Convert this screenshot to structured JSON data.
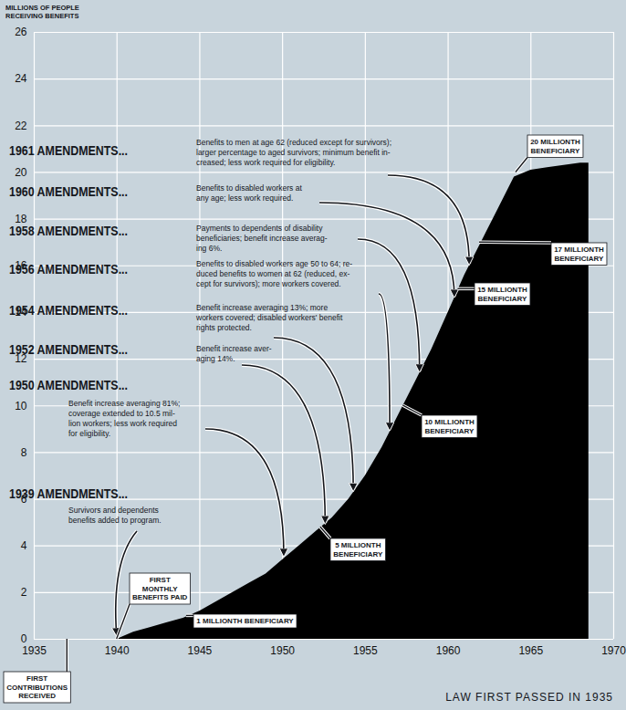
{
  "chart_data": {
    "type": "area",
    "y_label": "MILLIONS OF PEOPLE RECEIVING BENEFITS",
    "caption": "LAW FIRST PASSED IN 1935",
    "x": [
      1940,
      1941,
      1942,
      1943,
      1944,
      1945,
      1946,
      1947,
      1948,
      1949,
      1950,
      1951,
      1952,
      1953,
      1954,
      1955,
      1956,
      1957,
      1958,
      1959,
      1960,
      1961,
      1962,
      1963,
      1964,
      1965,
      1966,
      1967,
      1968,
      1968.5
    ],
    "values": [
      0,
      0.3,
      0.5,
      0.7,
      0.9,
      1.2,
      1.6,
      2.0,
      2.4,
      2.8,
      3.4,
      4.0,
      4.6,
      5.2,
      6.0,
      7.0,
      8.2,
      9.6,
      11.0,
      12.4,
      14.0,
      15.6,
      17.0,
      18.4,
      19.8,
      20.1,
      20.2,
      20.3,
      20.4,
      20.4
    ],
    "color": "#000000",
    "xlim": [
      1935,
      1970
    ],
    "ylim": [
      0,
      26
    ],
    "xticks": [
      1935,
      1940,
      1945,
      1950,
      1955,
      1960,
      1965,
      1970
    ],
    "yticks": [
      0,
      2,
      4,
      6,
      8,
      10,
      12,
      14,
      16,
      18,
      20,
      22,
      24,
      26
    ],
    "grid": true,
    "amendments": [
      {
        "label": "1961 AMENDMENTS...",
        "text": [
          "Benefits to men at age 62 (reduced except for survivors);",
          "larger percentage to aged survivors; minimum benefit in-",
          "creased; less work required for eligibility."
        ],
        "x": 1961.3,
        "y": 16.0
      },
      {
        "label": "1960 AMENDMENTS...",
        "text": [
          "Benefits to disabled workers at",
          "any age; less work required."
        ],
        "x": 1960.4,
        "y": 14.6
      },
      {
        "label": "1958 AMENDMENTS...",
        "text": [
          "Payments to dependents of disability",
          "beneficiaries; benefit increase averag-",
          "ing 6%."
        ],
        "x": 1958.3,
        "y": 11.4
      },
      {
        "label": "1956 AMENDMENTS...",
        "text": [
          "Benefits to disabled workers age 50 to 64; re-",
          "duced benefits to women at 62 (reduced, ex-",
          "cept for survivors); more workers covered."
        ],
        "x": 1956.5,
        "y": 8.9
      },
      {
        "label": "1954 AMENDMENTS...",
        "text": [
          "Benefit increase averaging 13%; more",
          "workers covered; disabled workers' benefit",
          "rights protected."
        ],
        "x": 1954.3,
        "y": 6.3
      },
      {
        "label": "1952 AMENDMENTS...",
        "text": [
          "Benefit increase aver-",
          "aging 14%."
        ],
        "x": 1952.6,
        "y": 4.9
      },
      {
        "label": "1950 AMENDMENTS...",
        "text": [
          "Benefit increase averaging 81%;",
          "coverage extended to 10.5 mil-",
          "lion workers; less work required",
          "for eligibility."
        ],
        "x": 1950.1,
        "y": 3.5
      },
      {
        "label": "1939 AMENDMENTS...",
        "text": [
          "Survivors and dependents",
          "benefits added to program."
        ],
        "x": 1940.0,
        "y": 0.1
      }
    ],
    "milestones": [
      {
        "label": [
          "1 MILLIONTH BENEFICIARY"
        ],
        "x": 1944.2,
        "y": 1.0
      },
      {
        "label": [
          "5 MILLIONTH",
          "BENEFICIARY"
        ],
        "x": 1952.3,
        "y": 4.8
      },
      {
        "label": [
          "10 MILLIONTH",
          "BENEFICIARY"
        ],
        "x": 1957.3,
        "y": 10.0
      },
      {
        "label": [
          "15 MILLIONTH",
          "BENEFICIARY"
        ],
        "x": 1960.6,
        "y": 15.0
      },
      {
        "label": [
          "17 MILLIONTH",
          "BENEFICIARY"
        ],
        "x": 1961.9,
        "y": 17.0
      },
      {
        "label": [
          "20 MILLIONTH",
          "BENEFICIARY"
        ],
        "x": 1964.1,
        "y": 20.0
      }
    ],
    "events": [
      {
        "label": [
          "FIRST",
          "CONTRIBUTIONS",
          "RECEIVED"
        ],
        "x": 1937
      },
      {
        "label": [
          "FIRST",
          "MONTHLY",
          "BENEFITS PAID"
        ],
        "x": 1940
      }
    ]
  }
}
